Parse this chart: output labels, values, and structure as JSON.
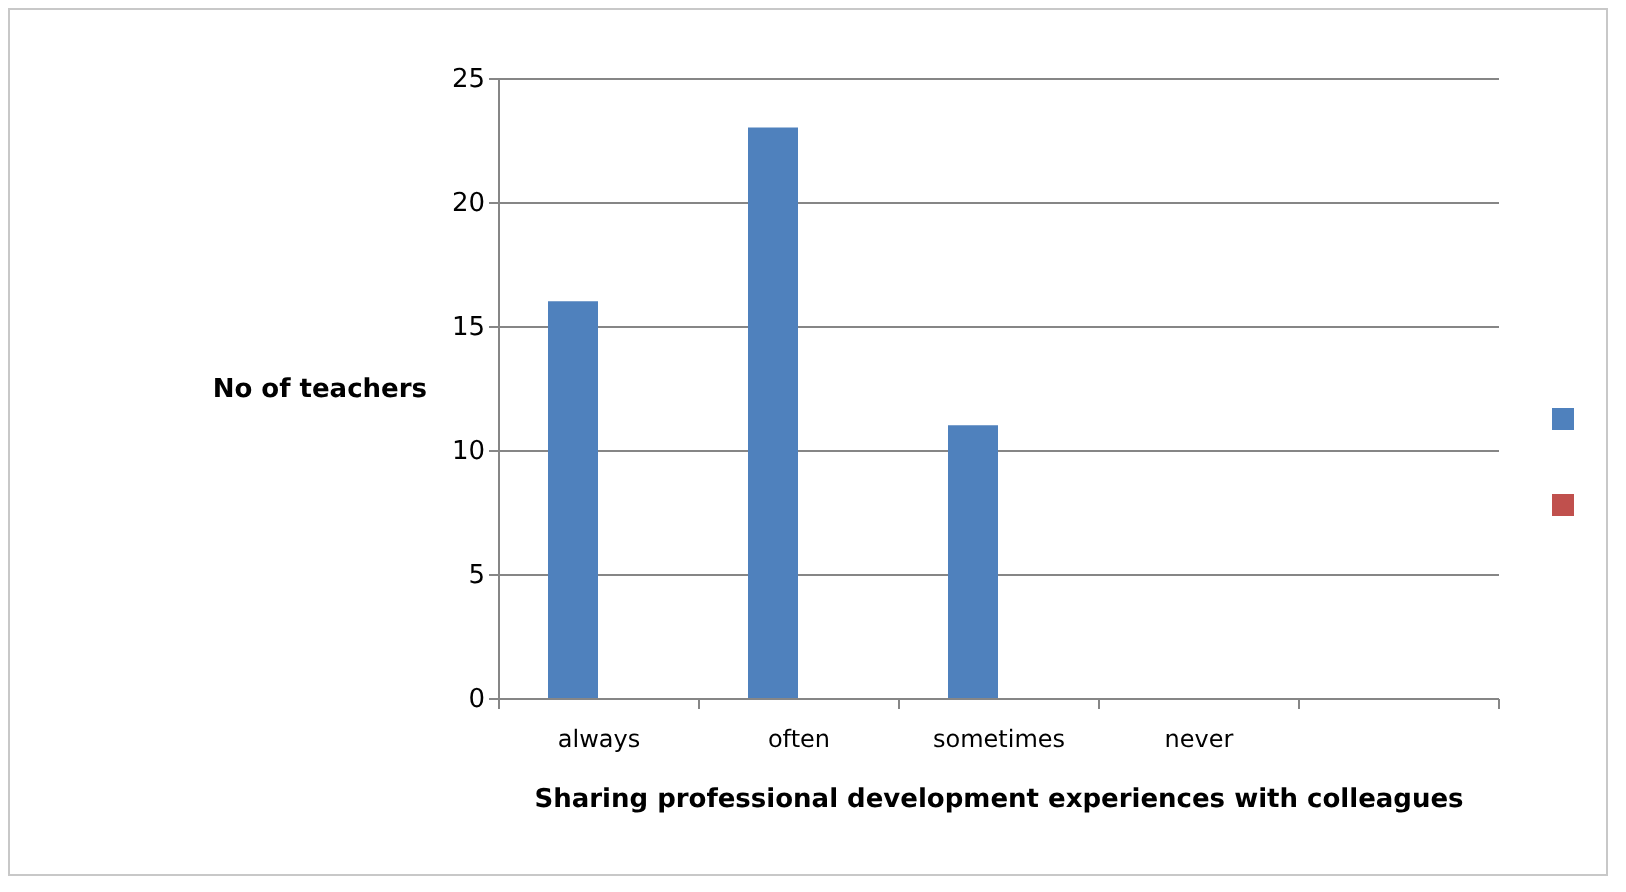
{
  "chart_data": {
    "type": "bar",
    "xlabel": "Sharing professional development experiences with colleagues",
    "ylabel": "No of teachers",
    "categories": [
      "always",
      "often",
      "sometimes",
      "never",
      null
    ],
    "series": [
      {
        "color": "#4f81bd",
        "values": [
          16,
          23,
          11,
          0,
          null
        ]
      },
      {
        "color": "#c0504d",
        "values": [
          null,
          null,
          null,
          null,
          null
        ]
      }
    ],
    "ylim": [
      0,
      25
    ],
    "yticks": [
      0,
      5,
      10,
      15,
      20,
      25
    ],
    "grid": "y"
  }
}
